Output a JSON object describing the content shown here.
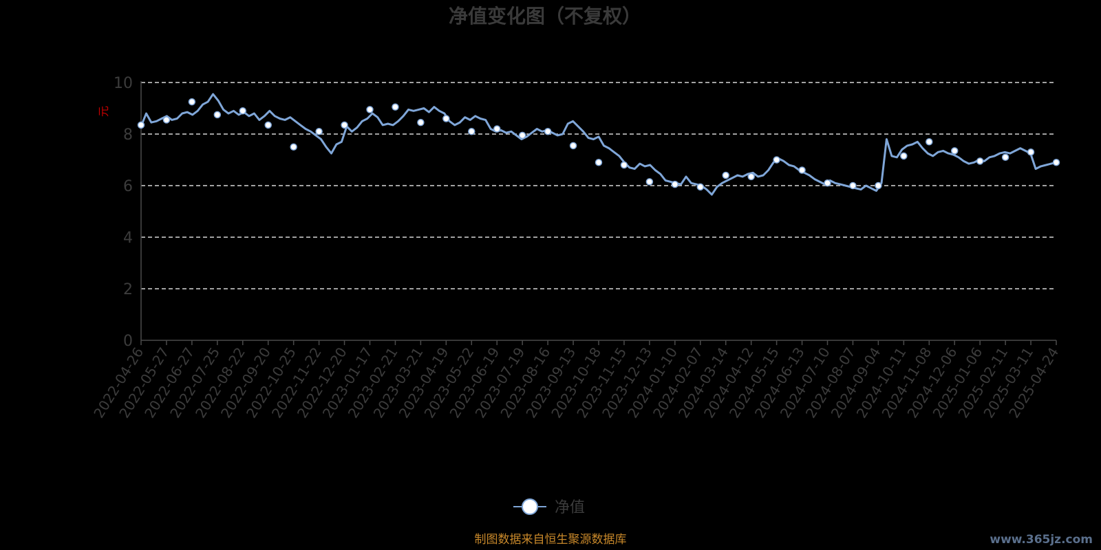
{
  "chart_data": {
    "type": "line",
    "title": "净值变化图（不复权）",
    "ylabel": "元",
    "ylim": [
      0,
      10
    ],
    "yticks": [
      0,
      2,
      4,
      6,
      8,
      10
    ],
    "grid": true,
    "legend_position": "bottom-center",
    "x_ticks": [
      "2022-04-26",
      "2022-05-27",
      "2022-06-27",
      "2022-07-25",
      "2022-08-22",
      "2022-09-20",
      "2022-10-25",
      "2022-11-22",
      "2022-12-20",
      "2023-01-17",
      "2023-02-21",
      "2023-03-21",
      "2023-04-19",
      "2023-05-22",
      "2023-06-19",
      "2023-07-19",
      "2023-08-16",
      "2023-09-13",
      "2023-10-18",
      "2023-11-15",
      "2023-12-13",
      "2024-01-10",
      "2024-02-07",
      "2024-03-14",
      "2024-04-12",
      "2024-05-15",
      "2024-06-13",
      "2024-07-10",
      "2024-08-07",
      "2024-09-04",
      "2024-10-11",
      "2024-11-08",
      "2024-12-06",
      "2025-01-06",
      "2025-02-11",
      "2025-03-11",
      "2025-04-24"
    ],
    "series": [
      {
        "name": "净值",
        "color": "#7fa6d8",
        "marker_fill": "#ffffff",
        "values": [
          8.35,
          8.55,
          9.25,
          8.75,
          8.9,
          8.35,
          7.5,
          8.1,
          8.35,
          8.95,
          9.05,
          8.45,
          8.6,
          8.1,
          8.2,
          7.95,
          8.1,
          7.55,
          6.9,
          6.8,
          6.15,
          6.05,
          5.95,
          6.4,
          6.35,
          7.0,
          6.6,
          6.1,
          6.0,
          6.0,
          7.15,
          7.7,
          7.35,
          6.95,
          7.1,
          7.3,
          6.9
        ]
      }
    ],
    "detail_values": [
      8.3,
      8.8,
      8.45,
      8.5,
      8.6,
      8.7,
      8.55,
      8.6,
      8.8,
      8.85,
      8.75,
      8.9,
      9.15,
      9.25,
      9.55,
      9.3,
      8.95,
      8.8,
      8.9,
      8.75,
      8.85,
      8.7,
      8.8,
      8.55,
      8.7,
      8.9,
      8.7,
      8.6,
      8.55,
      8.65,
      8.5,
      8.35,
      8.2,
      8.1,
      7.95,
      7.8,
      7.5,
      7.25,
      7.6,
      7.7,
      8.3,
      8.1,
      8.25,
      8.5,
      8.6,
      8.8,
      8.65,
      8.35,
      8.4,
      8.35,
      8.5,
      8.7,
      8.95,
      8.9,
      8.95,
      9.0,
      8.85,
      9.05,
      8.9,
      8.8,
      8.5,
      8.35,
      8.45,
      8.65,
      8.55,
      8.7,
      8.6,
      8.55,
      8.2,
      8.1,
      8.15,
      8.05,
      8.1,
      7.95,
      7.8,
      7.9,
      8.05,
      8.2,
      8.1,
      8.15,
      8.05,
      7.95,
      8.0,
      8.4,
      8.5,
      8.3,
      8.1,
      7.85,
      7.8,
      7.9,
      7.55,
      7.45,
      7.3,
      7.15,
      6.9,
      6.7,
      6.65,
      6.85,
      6.75,
      6.8,
      6.6,
      6.45,
      6.2,
      6.15,
      6.1,
      6.05,
      6.35,
      6.1,
      6.05,
      6.0,
      5.85,
      5.65,
      5.95,
      6.1,
      6.2,
      6.3,
      6.4,
      6.35,
      6.45,
      6.5,
      6.35,
      6.4,
      6.6,
      6.9,
      7.05,
      6.95,
      6.8,
      6.75,
      6.6,
      6.5,
      6.4,
      6.25,
      6.15,
      6.05,
      6.2,
      6.1,
      6.05,
      6.0,
      5.95,
      5.9,
      5.85,
      6.0,
      5.9,
      5.8,
      6.1,
      7.8,
      7.15,
      7.1,
      7.4,
      7.55,
      7.6,
      7.7,
      7.45,
      7.25,
      7.15,
      7.3,
      7.35,
      7.25,
      7.2,
      7.1,
      6.95,
      6.85,
      6.9,
      7.0,
      6.95,
      7.1,
      7.15,
      7.25,
      7.3,
      7.25,
      7.35,
      7.45,
      7.35,
      7.25,
      6.65,
      6.75,
      6.8,
      6.85,
      6.9
    ]
  },
  "legend": {
    "label": "净值"
  },
  "footer": {
    "source": "制图数据来自恒生聚源数据库",
    "watermark": "www.365jz.com"
  }
}
